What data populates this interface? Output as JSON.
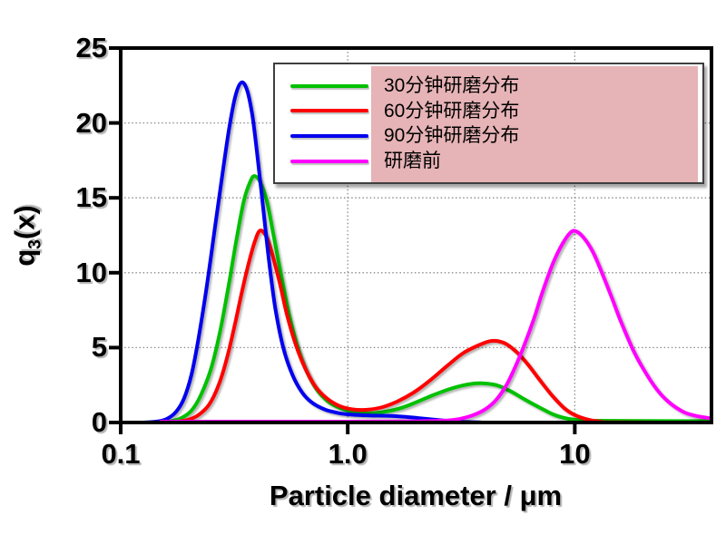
{
  "x_axis": {
    "title": "Particle diameter / μm",
    "scale": "log",
    "min": 0.1,
    "max": 40,
    "tick_values": [
      0.1,
      1.0,
      10
    ],
    "tick_labels": [
      "0.1",
      "1.0",
      "10"
    ],
    "gridline_values": [
      1.0,
      10
    ]
  },
  "y_axis": {
    "title_prefix": "q",
    "title_sub": "3",
    "title_suffix": "(x)",
    "min": 0,
    "max": 25,
    "tick_values": [
      0,
      5,
      10,
      15,
      20,
      25
    ],
    "tick_labels": [
      "0",
      "5",
      "10",
      "15",
      "20",
      "25"
    ],
    "gridline_values": [
      5,
      10,
      15,
      20
    ]
  },
  "legend": {
    "highlight_color": "#e6b3b6",
    "border_color": "#3f3f3f",
    "background": "#ffffff"
  },
  "colors": {
    "frame": "#000000",
    "grid": "#8c8c8c",
    "background": "#ffffff"
  },
  "chart_data": {
    "type": "line",
    "title": "",
    "xlabel": "Particle diameter / μm",
    "ylabel": "q3(x)",
    "x_scale": "log",
    "xlim": [
      0.1,
      40
    ],
    "ylim": [
      0,
      25
    ],
    "x_ticks": [
      0.1,
      1.0,
      10
    ],
    "y_ticks": [
      0,
      5,
      10,
      15,
      20,
      25
    ],
    "grid": "dotted",
    "legend_position": "top-right",
    "series": [
      {
        "name": "30分钟研磨分布",
        "color": "#00c000",
        "points": [
          [
            0.145,
            0
          ],
          [
            0.165,
            0.08
          ],
          [
            0.185,
            0.3
          ],
          [
            0.205,
            0.8
          ],
          [
            0.225,
            1.8
          ],
          [
            0.25,
            3.6
          ],
          [
            0.275,
            6.2
          ],
          [
            0.3,
            9.3
          ],
          [
            0.325,
            12.4
          ],
          [
            0.35,
            14.9
          ],
          [
            0.375,
            16.2
          ],
          [
            0.39,
            16.45
          ],
          [
            0.41,
            16.1
          ],
          [
            0.44,
            14.8
          ],
          [
            0.47,
            12.6
          ],
          [
            0.51,
            9.8
          ],
          [
            0.55,
            7.3
          ],
          [
            0.6,
            5.1
          ],
          [
            0.66,
            3.4
          ],
          [
            0.73,
            2.2
          ],
          [
            0.82,
            1.4
          ],
          [
            0.93,
            0.95
          ],
          [
            1.05,
            0.72
          ],
          [
            1.2,
            0.62
          ],
          [
            1.4,
            0.68
          ],
          [
            1.7,
            0.95
          ],
          [
            2.0,
            1.35
          ],
          [
            2.4,
            1.85
          ],
          [
            2.9,
            2.3
          ],
          [
            3.4,
            2.55
          ],
          [
            3.9,
            2.62
          ],
          [
            4.5,
            2.5
          ],
          [
            5.2,
            2.1
          ],
          [
            6.0,
            1.55
          ],
          [
            7.0,
            1.0
          ],
          [
            8.0,
            0.55
          ],
          [
            9.0,
            0.3
          ],
          [
            10,
            0.18
          ],
          [
            12,
            0.12
          ],
          [
            20,
            0.1
          ],
          [
            40,
            0.1
          ]
        ]
      },
      {
        "name": "60分钟研磨分布",
        "color": "#ff0000",
        "points": [
          [
            0.16,
            0
          ],
          [
            0.18,
            0.07
          ],
          [
            0.2,
            0.2
          ],
          [
            0.22,
            0.5
          ],
          [
            0.245,
            1.2
          ],
          [
            0.27,
            2.5
          ],
          [
            0.295,
            4.4
          ],
          [
            0.32,
            6.7
          ],
          [
            0.345,
            9.0
          ],
          [
            0.37,
            10.9
          ],
          [
            0.39,
            12.1
          ],
          [
            0.41,
            12.8
          ],
          [
            0.435,
            12.5
          ],
          [
            0.46,
            11.5
          ],
          [
            0.5,
            9.4
          ],
          [
            0.54,
            7.2
          ],
          [
            0.59,
            5.2
          ],
          [
            0.65,
            3.6
          ],
          [
            0.72,
            2.4
          ],
          [
            0.81,
            1.6
          ],
          [
            0.92,
            1.1
          ],
          [
            1.05,
            0.88
          ],
          [
            1.2,
            0.85
          ],
          [
            1.4,
            1.0
          ],
          [
            1.65,
            1.4
          ],
          [
            1.95,
            2.0
          ],
          [
            2.3,
            2.8
          ],
          [
            2.75,
            3.8
          ],
          [
            3.2,
            4.6
          ],
          [
            3.7,
            5.1
          ],
          [
            4.3,
            5.45
          ],
          [
            4.9,
            5.3
          ],
          [
            5.5,
            4.75
          ],
          [
            6.2,
            3.9
          ],
          [
            7.0,
            2.85
          ],
          [
            8.0,
            1.75
          ],
          [
            9.0,
            0.95
          ],
          [
            10,
            0.5
          ],
          [
            11.5,
            0.18
          ],
          [
            13,
            0.06
          ],
          [
            15,
            0.01
          ],
          [
            40,
            0
          ]
        ]
      },
      {
        "name": "90分钟研磨分布",
        "color": "#0000ee",
        "points": [
          [
            0.125,
            0
          ],
          [
            0.145,
            0.07
          ],
          [
            0.16,
            0.25
          ],
          [
            0.175,
            0.7
          ],
          [
            0.19,
            1.6
          ],
          [
            0.205,
            3.2
          ],
          [
            0.22,
            5.6
          ],
          [
            0.24,
            9.2
          ],
          [
            0.26,
            13.0
          ],
          [
            0.28,
            16.5
          ],
          [
            0.3,
            19.6
          ],
          [
            0.32,
            21.8
          ],
          [
            0.34,
            22.7
          ],
          [
            0.36,
            22.2
          ],
          [
            0.38,
            20.5
          ],
          [
            0.4,
            17.8
          ],
          [
            0.425,
            14.2
          ],
          [
            0.45,
            10.8
          ],
          [
            0.48,
            7.6
          ],
          [
            0.52,
            5.0
          ],
          [
            0.57,
            3.2
          ],
          [
            0.63,
            2.0
          ],
          [
            0.7,
            1.3
          ],
          [
            0.8,
            0.85
          ],
          [
            0.92,
            0.62
          ],
          [
            1.05,
            0.52
          ],
          [
            1.25,
            0.47
          ],
          [
            1.5,
            0.45
          ],
          [
            1.8,
            0.38
          ],
          [
            2.2,
            0.25
          ],
          [
            2.7,
            0.12
          ],
          [
            3.2,
            0.04
          ],
          [
            3.8,
            0.01
          ],
          [
            5.0,
            0
          ],
          [
            40,
            0
          ]
        ]
      },
      {
        "name": "研磨前",
        "color": "#ff00ff",
        "points": [
          [
            0.15,
            0.06
          ],
          [
            1.0,
            0.06
          ],
          [
            2.0,
            0.08
          ],
          [
            2.6,
            0.12
          ],
          [
            3.0,
            0.2
          ],
          [
            3.5,
            0.45
          ],
          [
            4.0,
            0.85
          ],
          [
            4.5,
            1.5
          ],
          [
            5.0,
            2.5
          ],
          [
            5.5,
            3.8
          ],
          [
            6.0,
            5.2
          ],
          [
            6.6,
            6.9
          ],
          [
            7.2,
            8.7
          ],
          [
            8.0,
            10.6
          ],
          [
            8.8,
            11.9
          ],
          [
            9.6,
            12.7
          ],
          [
            10.2,
            12.75
          ],
          [
            11,
            12.3
          ],
          [
            12,
            11.4
          ],
          [
            13,
            10.2
          ],
          [
            14.5,
            8.4
          ],
          [
            16,
            6.7
          ],
          [
            18,
            4.9
          ],
          [
            20,
            3.6
          ],
          [
            23,
            2.2
          ],
          [
            26,
            1.35
          ],
          [
            30,
            0.72
          ],
          [
            34,
            0.45
          ],
          [
            38,
            0.32
          ],
          [
            40,
            0.28
          ]
        ]
      }
    ]
  }
}
